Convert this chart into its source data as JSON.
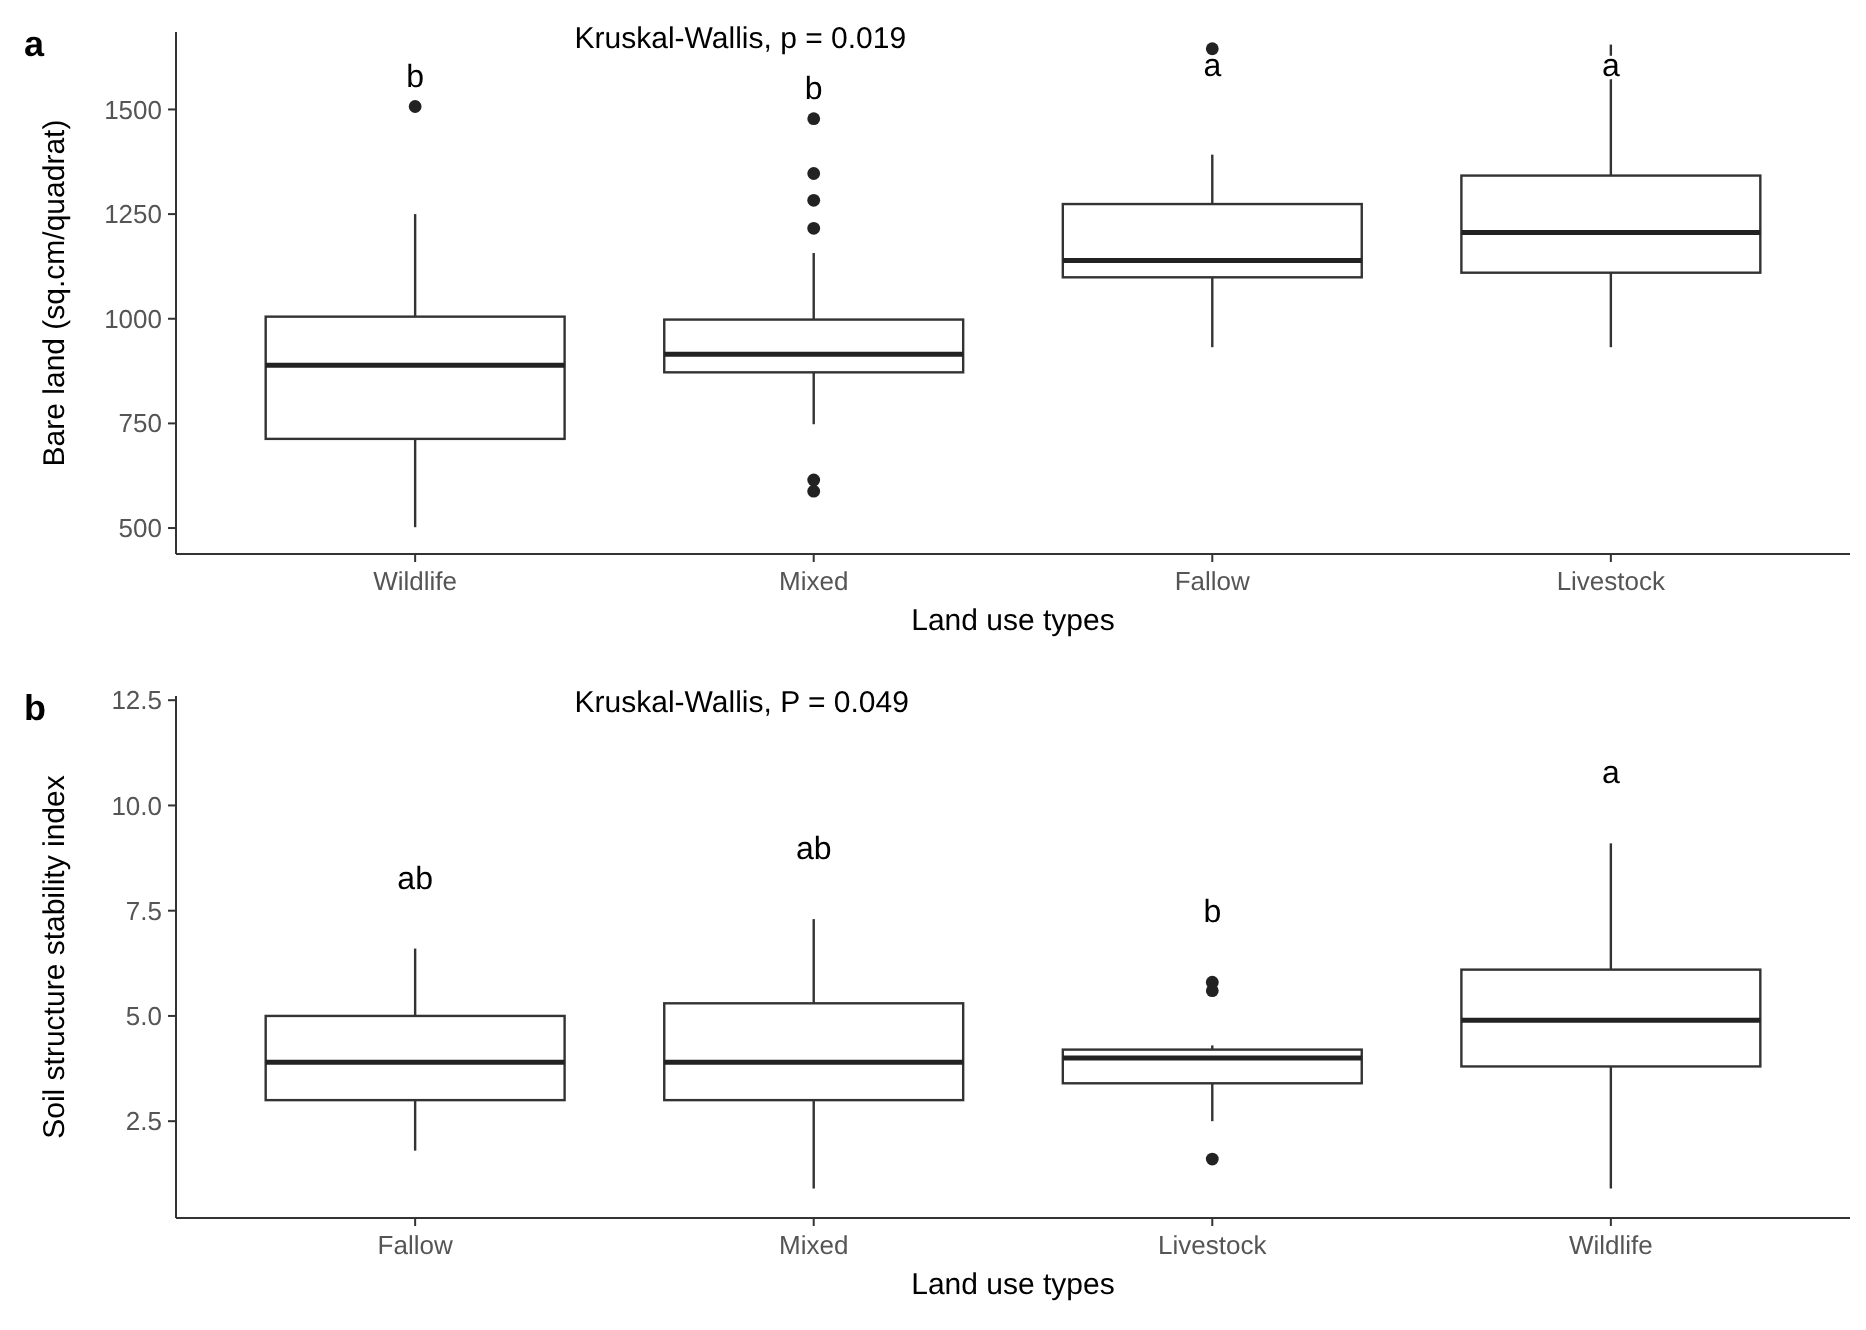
{
  "chart_data": [
    {
      "type": "box",
      "title": "a",
      "xlabel": "Land use types",
      "ylabel": "Bare land (sq.cm/quadrat)",
      "categories": [
        "Wildlife",
        "Mixed",
        "Fallow",
        "Livestock"
      ],
      "ylim": [
        438,
        1685
      ],
      "yticks": [
        500,
        750,
        1000,
        1250,
        1500
      ],
      "boxes": [
        {
          "low": 502,
          "q1": 713,
          "median": 889,
          "q3": 1005,
          "high": 1250,
          "outliers": [
            1507
          ]
        },
        {
          "low": 748,
          "q1": 872,
          "median": 915,
          "q3": 998,
          "high": 1157,
          "outliers": [
            1478,
            1347,
            1283,
            1216,
            615,
            588
          ]
        },
        {
          "low": 932,
          "q1": 1099,
          "median": 1139,
          "q3": 1274,
          "high": 1392,
          "outliers": [
            1645
          ]
        },
        {
          "low": 932,
          "q1": 1110,
          "median": 1206,
          "q3": 1342,
          "high": 1655
        }
      ],
      "annotations": [
        "Kruskal-Wallis, p = 0.019",
        "b",
        "b",
        "a",
        "a"
      ]
    },
    {
      "type": "box",
      "title": "b",
      "xlabel": "Land use types",
      "ylabel": "Soil structure stability index",
      "categories": [
        "Fallow",
        "Mixed",
        "Livestock",
        "Wildlife"
      ],
      "ylim": [
        0.2,
        12.6
      ],
      "yticks": [
        {
          "value": 2.5,
          "label": "2.5"
        },
        {
          "value": 5,
          "label": "5.0"
        },
        {
          "value": 7.5,
          "label": "7.5"
        },
        {
          "value": 10,
          "label": "10.0"
        },
        {
          "value": 12.5,
          "label": "12.5"
        }
      ],
      "boxes": [
        {
          "low": 1.8,
          "q1": 3.0,
          "median": 3.9,
          "q3": 5.0,
          "high": 6.6
        },
        {
          "low": 0.9,
          "q1": 3.0,
          "median": 3.9,
          "q3": 5.3,
          "high": 7.3
        },
        {
          "low": 2.5,
          "q1": 3.4,
          "median": 4.0,
          "q3": 4.2,
          "high": 4.3,
          "outliers": [
            5.6,
            5.8,
            1.6
          ]
        },
        {
          "low": 0.9,
          "q1": 3.8,
          "median": 4.9,
          "q3": 6.1,
          "high": 9.1
        }
      ],
      "annotations": [
        "Kruskal-Wallis, P = 0.049",
        "ab",
        "ab",
        "b",
        "a"
      ]
    }
  ]
}
